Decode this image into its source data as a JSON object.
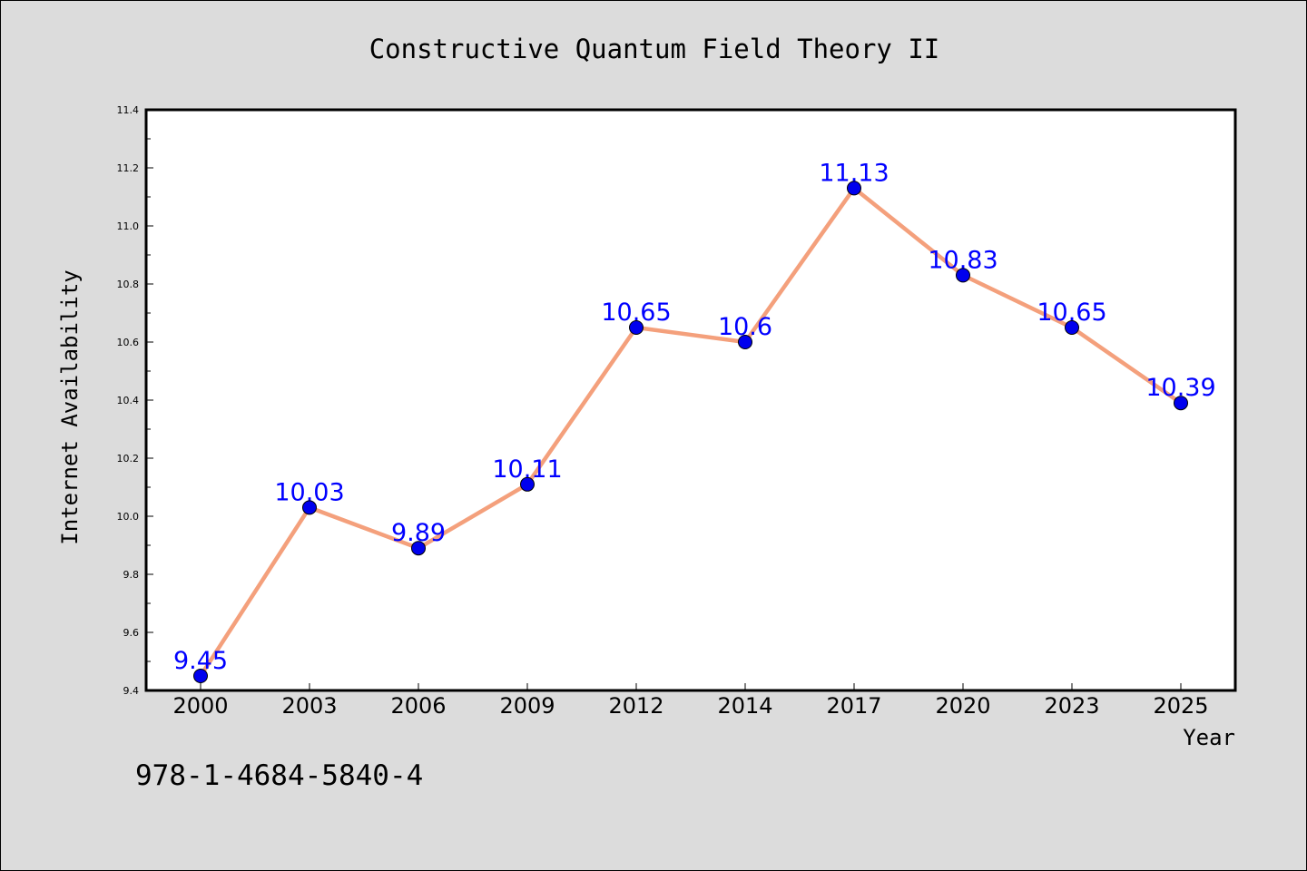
{
  "chart_data": {
    "type": "line",
    "title": "Constructive Quantum Field Theory II",
    "xlabel": "Year",
    "ylabel": "Internet Availability",
    "categories": [
      "2000",
      "2003",
      "2006",
      "2009",
      "2012",
      "2014",
      "2017",
      "2020",
      "2023",
      "2025"
    ],
    "series": [
      {
        "values": [
          9.45,
          10.03,
          9.89,
          10.11,
          10.65,
          10.6,
          11.13,
          10.83,
          10.65,
          10.39
        ],
        "data_labels": [
          "9.45",
          "10.03",
          "9.89",
          "10.11",
          "10.65",
          "10.6",
          "11.13",
          "10.83",
          "10.65",
          "10.39"
        ]
      }
    ],
    "ylim": [
      9.4,
      11.4
    ],
    "yticks": [
      "9.4",
      "9.6",
      "9.8",
      "10.0",
      "10.2",
      "10.4",
      "10.6",
      "10.8",
      "11.0",
      "11.2",
      "11.4"
    ],
    "grid": false,
    "colors": {
      "line": "#f4a07c",
      "marker": "#0000ee",
      "data_label": "#0000ff",
      "background": "#dcdcdc",
      "plot_area": "#ffffff"
    }
  },
  "footer_text": "978-1-4684-5840-4"
}
